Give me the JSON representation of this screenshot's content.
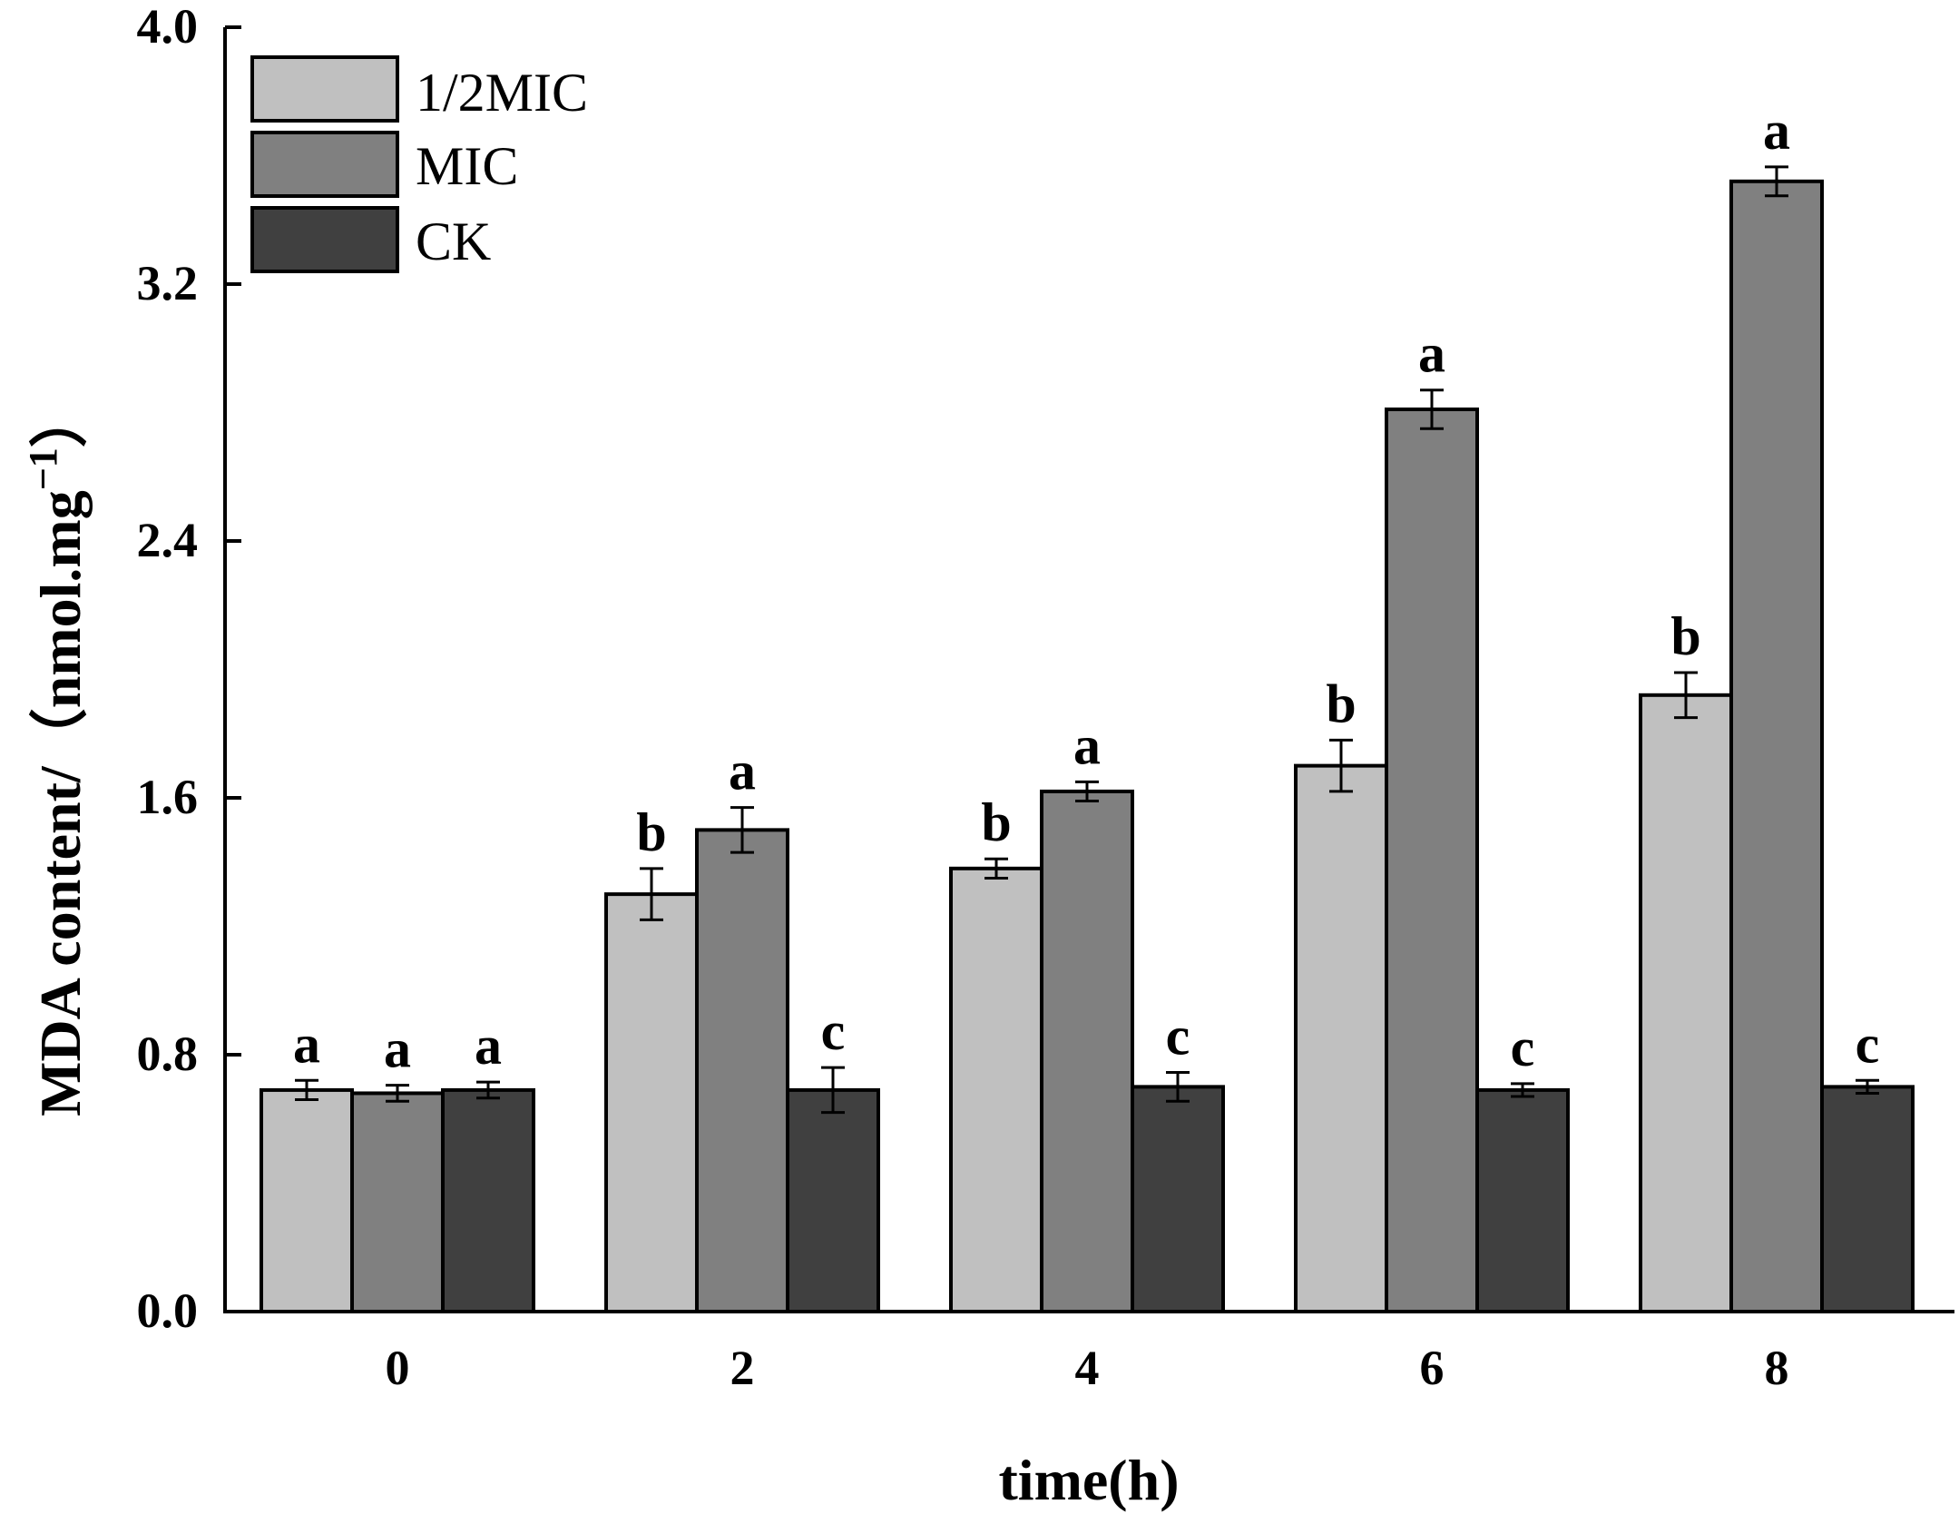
{
  "chart_data": {
    "type": "bar",
    "title": "",
    "xlabel": "time(h)",
    "ylabel": "MDA content/（nmol.mg",
    "ylabel_superscript": "−1",
    "ylabel_close": "）",
    "ylim": [
      0,
      4.0
    ],
    "yticks": [
      "0.0",
      "0.8",
      "1.6",
      "2.4",
      "3.2",
      "4.0"
    ],
    "categories": [
      "0",
      "2",
      "4",
      "6",
      "8"
    ],
    "legend_position": "top-left",
    "series": [
      {
        "name": "1/2MIC",
        "color": "#c0c0c0",
        "values": [
          0.69,
          1.3,
          1.38,
          1.7,
          1.92
        ],
        "errors": [
          0.03,
          0.08,
          0.03,
          0.08,
          0.07
        ],
        "labels": [
          "a",
          "b",
          "b",
          "b",
          "b"
        ]
      },
      {
        "name": "MIC",
        "color": "#808080",
        "values": [
          0.68,
          1.5,
          1.62,
          2.81,
          3.52
        ],
        "errors": [
          0.025,
          0.07,
          0.03,
          0.06,
          0.045
        ],
        "labels": [
          "a",
          "a",
          "a",
          "a",
          "a"
        ]
      },
      {
        "name": "CK",
        "color": "#404040",
        "values": [
          0.69,
          0.69,
          0.7,
          0.69,
          0.7
        ],
        "errors": [
          0.025,
          0.07,
          0.045,
          0.02,
          0.02
        ],
        "labels": [
          "a",
          "c",
          "c",
          "c",
          "c"
        ]
      }
    ]
  }
}
